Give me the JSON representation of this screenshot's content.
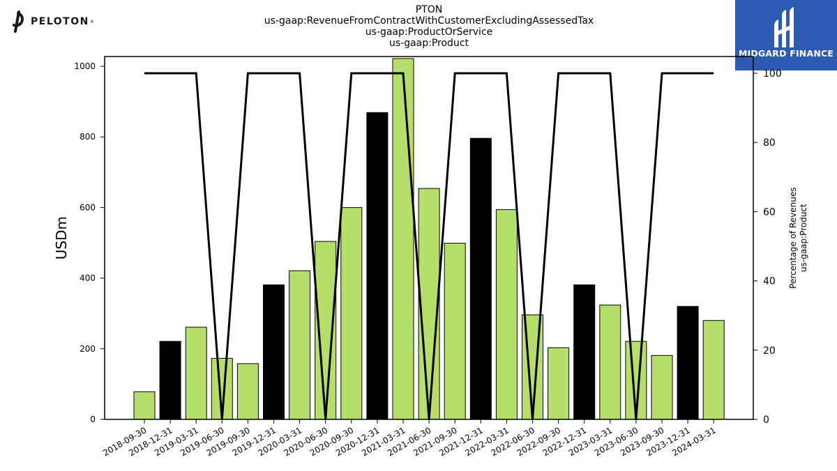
{
  "header": {
    "title_lines": [
      "PTON",
      "us-gaap:RevenueFromContractWithCustomerExcludingAssessedTax",
      "us-gaap:ProductOrService",
      "us-gaap:Product"
    ]
  },
  "logos": {
    "peloton": {
      "text": "PELOTON",
      "mark": "®"
    },
    "midgard": {
      "text": "MIDGARD FINANCE",
      "background": "#2d5bb1"
    }
  },
  "chart_data": {
    "type": "bar",
    "categories": [
      "2018-09-30",
      "2018-12-31",
      "2019-03-31",
      "2019-06-30",
      "2019-09-30",
      "2019-12-31",
      "2020-03-31",
      "2020-06-30",
      "2020-09-30",
      "2020-12-31",
      "2021-03-31",
      "2021-06-30",
      "2021-09-30",
      "2021-12-31",
      "2022-03-31",
      "2022-06-30",
      "2022-09-30",
      "2022-12-31",
      "2023-03-31",
      "2023-06-30",
      "2023-09-30",
      "2023-12-31",
      "2024-03-31"
    ],
    "series": [
      {
        "axis": "left",
        "values": [
          78,
          221,
          261,
          173,
          158,
          381,
          421,
          504,
          600,
          869,
          1022,
          654,
          499,
          796,
          594,
          296,
          203,
          381,
          324,
          221,
          181,
          320,
          280
        ],
        "bar_colors": [
          "green",
          "black",
          "green",
          "green",
          "green",
          "black",
          "green",
          "green",
          "green",
          "black",
          "green",
          "green",
          "green",
          "black",
          "green",
          "green",
          "green",
          "black",
          "green",
          "green",
          "green",
          "black",
          "green"
        ]
      },
      {
        "axis": "right",
        "type": "line",
        "color": "#000000",
        "values": [
          100,
          100,
          100,
          0,
          100,
          100,
          100,
          0,
          100,
          100,
          100,
          0,
          100,
          100,
          100,
          0,
          100,
          100,
          100,
          0,
          100,
          100,
          100
        ]
      }
    ],
    "colors": {
      "green": "#b5de6a",
      "black": "#000000"
    },
    "ylabel": "USDm",
    "ylabel_right": [
      "Percentage of Revenues",
      "us-gaap:Product"
    ],
    "ylim": [
      0,
      1030
    ],
    "ylim_right": [
      0,
      104
    ],
    "yticks": [
      0,
      200,
      400,
      600,
      800,
      1000
    ],
    "yticks_right": [
      0,
      20,
      40,
      60,
      80,
      100
    ],
    "grid": false,
    "legend": "none"
  }
}
